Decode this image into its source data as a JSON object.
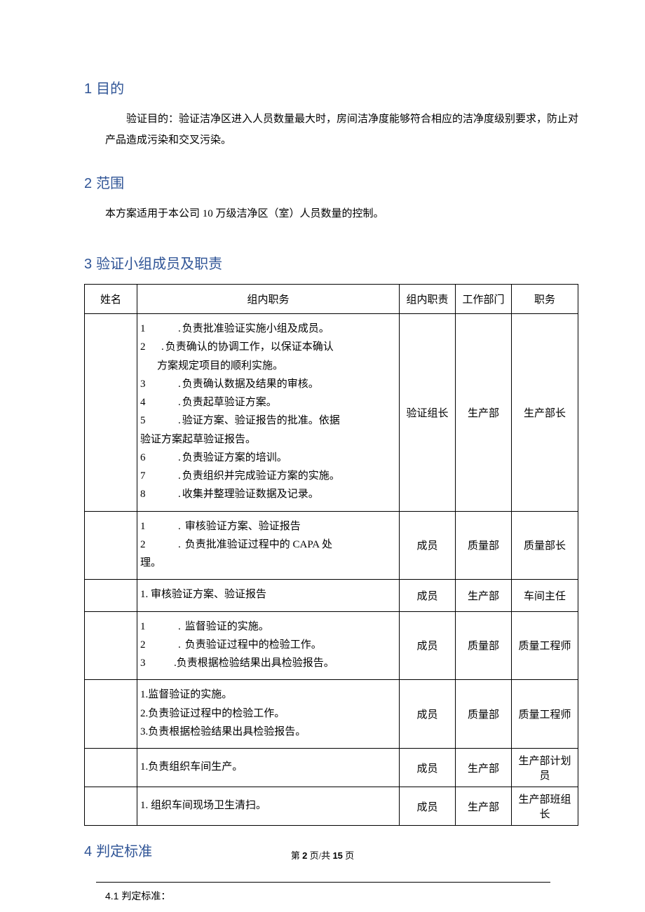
{
  "section1": {
    "num": "1",
    "title": "目的",
    "text": "验证目的：验证洁净区进入人员数量最大时，房间洁净度能够符合相应的洁净度级别要求，防止对产品造成污染和交叉污染。"
  },
  "section2": {
    "num": "2",
    "title": "范围",
    "text": "本方案适用于本公司 10 万级洁净区（室）人员数量的控制。"
  },
  "section3": {
    "num": "3",
    "title": "验证小组成员及职责",
    "columns": {
      "name": "姓名",
      "duty": "组内职务",
      "resp": "组内职责",
      "dept": "工作部门",
      "pos": "职务"
    },
    "rows": [
      {
        "name": "",
        "duties": [
          {
            "n": "1",
            "dot": ".",
            "t": "负责批准验证实施小组及成员。",
            "style": "wide"
          },
          {
            "n": "2",
            "dot": ".",
            "t": "负责确认的协调工作，以保证本确认方案规定项目的顺利实施。",
            "style": "mid",
            "wrap": true
          },
          {
            "n": "3",
            "dot": ".",
            "t": "负责确认数据及结果的审核。",
            "style": "wide"
          },
          {
            "n": "4",
            "dot": ".",
            "t": "负责起草验证方案。",
            "style": "wide"
          },
          {
            "n": "5",
            "dot": ".",
            "t": "验证方案、验证报告的批准。依据验证方案起草验证报告。",
            "style": "wide",
            "wrap2": true
          },
          {
            "n": "6",
            "dot": ".",
            "t": "负责验证方案的培训。",
            "style": "wide"
          },
          {
            "n": "7",
            "dot": ".",
            "t": "负责组织并完成验证方案的实施。",
            "style": "wide"
          },
          {
            "n": "8",
            "dot": ".",
            "t": "收集并整理验证数据及记录。",
            "style": "wide"
          }
        ],
        "resp": "验证组长",
        "dept": "生产部",
        "pos": "生产部长"
      },
      {
        "name": "",
        "duties": [
          {
            "n": "1",
            "dot": ".",
            "t": "审核验证方案、验证报告",
            "style": "wide2"
          },
          {
            "n": "2",
            "dot": ".",
            "t": "负责批准验证过程中的 CAPA 处理。",
            "style": "wide2",
            "wrap3": true
          }
        ],
        "resp": "成员",
        "dept": "质量部",
        "pos": "质量部长"
      },
      {
        "name": "",
        "plain_duties": [
          "1. 审核验证方案、验证报告"
        ],
        "resp": "成员",
        "dept": "生产部",
        "pos": "车间主任"
      },
      {
        "name": "",
        "duties": [
          {
            "n": "1",
            "dot": ".",
            "t": "监督验证的实施。",
            "style": "wide2"
          },
          {
            "n": "2",
            "dot": ".",
            "t": "负责验证过程中的检验工作。",
            "style": "wide2"
          },
          {
            "n": "3",
            "dot": ".",
            "t": "负责根据检验结果出具检验报告。",
            "style": "tight"
          }
        ],
        "resp": "成员",
        "dept": "质量部",
        "pos": "质量工程师"
      },
      {
        "name": "",
        "plain_duties": [
          "1.监督验证的实施。",
          "2.负责验证过程中的检验工作。",
          "3.负责根据检验结果出具检验报告。"
        ],
        "resp": "成员",
        "dept": "质量部",
        "pos": "质量工程师"
      },
      {
        "name": "",
        "plain_duties": [
          "1.负责组织车间生产。"
        ],
        "resp": "成员",
        "dept": "生产部",
        "pos": "生产部计划员"
      },
      {
        "name": "",
        "plain_duties": [
          "1. 组织车间现场卫生清扫。"
        ],
        "resp": "成员",
        "dept": "生产部",
        "pos": "生产部班组长"
      }
    ]
  },
  "section4": {
    "num": "4",
    "title": "判定标准",
    "sub": "4.1   判定标准："
  },
  "footer": {
    "prefix": "第 ",
    "page": "2",
    "mid": " 页/共 ",
    "total": "15",
    "suffix": " 页"
  }
}
